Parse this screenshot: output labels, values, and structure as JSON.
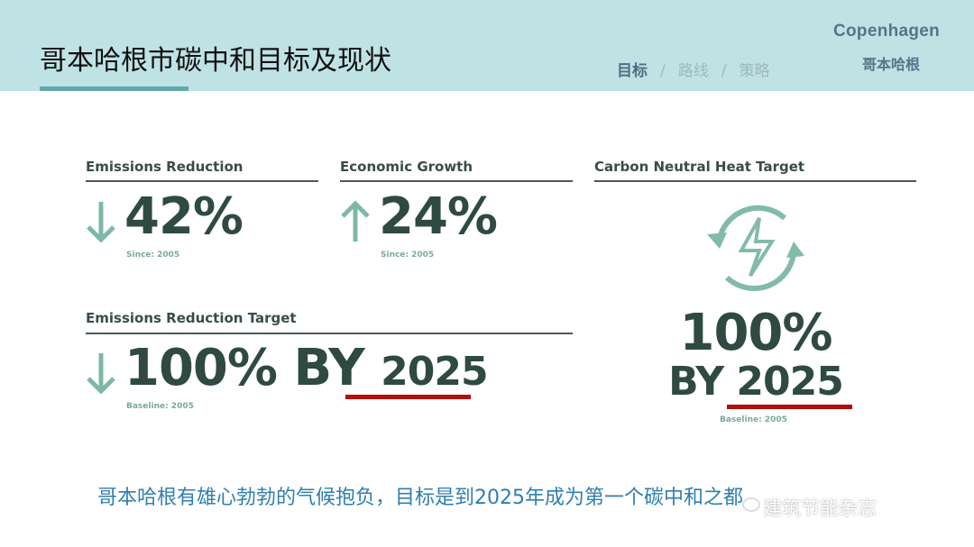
{
  "header": {
    "title": "哥本哈根市碳中和目标及现状",
    "nav": [
      "目标",
      "路线",
      "策略"
    ],
    "nav_sep": "/",
    "brand_en": "Copenhagen",
    "brand_cn": "哥本哈根"
  },
  "colors": {
    "header_bg": "#bfe2e5",
    "dark_green": "#2f4a41",
    "arrow_green": "#7fb8a4",
    "accent_red": "#b30d0d",
    "footer_blue": "#2f7fb0"
  },
  "stats": [
    {
      "label": "Emissions Reduction",
      "direction": "down",
      "value": "42%",
      "note": "Since: 2005"
    },
    {
      "label": "Economic Growth",
      "direction": "up",
      "value": "24%",
      "note": "Since: 2005"
    },
    {
      "label": "Emissions Reduction Target",
      "direction": "down",
      "value": "100% BY",
      "year": "2025",
      "note": "Baseline: 2005"
    }
  ],
  "heat": {
    "label": "Carbon Neutral Heat Target",
    "icon": "renewable-energy-icon",
    "value": "100%",
    "by": "BY",
    "year": "2025",
    "note": "Baseline: 2005"
  },
  "footer": {
    "text": "哥本哈根有雄心勃勃的气候抱负，目标是到2025年成为第一个碳中和之都",
    "watermark": "建筑节能杂志"
  }
}
